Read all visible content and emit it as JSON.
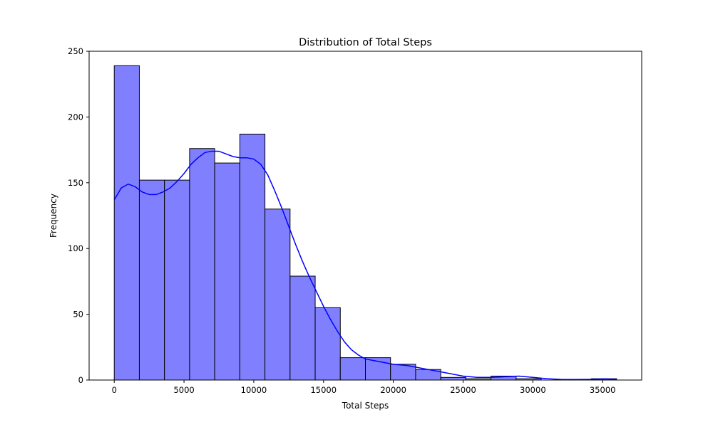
{
  "chart_data": {
    "type": "bar",
    "title": "Distribution of Total Steps",
    "xlabel": "Total Steps",
    "ylabel": "Frequency",
    "xlim": [
      -1800,
      37800
    ],
    "ylim": [
      0,
      250
    ],
    "x_ticks": [
      0,
      5000,
      10000,
      15000,
      20000,
      25000,
      30000,
      35000
    ],
    "x_tick_labels": [
      "0",
      "5000",
      "10000",
      "15000",
      "20000",
      "25000",
      "30000",
      "35000"
    ],
    "y_ticks": [
      0,
      50,
      100,
      150,
      200,
      250
    ],
    "y_tick_labels": [
      "0",
      "50",
      "100",
      "150",
      "200",
      "250"
    ],
    "grid": false,
    "bar_color": "#8080ff",
    "bar_edge_color": "#000000",
    "kde_color": "#0000ff",
    "bins": [
      {
        "x0": 0,
        "x1": 1800,
        "value": 239
      },
      {
        "x0": 1800,
        "x1": 3600,
        "value": 152
      },
      {
        "x0": 3600,
        "x1": 5400,
        "value": 152
      },
      {
        "x0": 5400,
        "x1": 7200,
        "value": 176
      },
      {
        "x0": 7200,
        "x1": 9000,
        "value": 165
      },
      {
        "x0": 9000,
        "x1": 10800,
        "value": 187
      },
      {
        "x0": 10800,
        "x1": 12600,
        "value": 130
      },
      {
        "x0": 12600,
        "x1": 14400,
        "value": 79
      },
      {
        "x0": 14400,
        "x1": 16200,
        "value": 55
      },
      {
        "x0": 16200,
        "x1": 18000,
        "value": 17
      },
      {
        "x0": 18000,
        "x1": 19800,
        "value": 17
      },
      {
        "x0": 19800,
        "x1": 21600,
        "value": 12
      },
      {
        "x0": 21600,
        "x1": 23400,
        "value": 8
      },
      {
        "x0": 23400,
        "x1": 25200,
        "value": 2
      },
      {
        "x0": 25200,
        "x1": 27000,
        "value": 1
      },
      {
        "x0": 27000,
        "x1": 28800,
        "value": 3
      },
      {
        "x0": 28800,
        "x1": 30600,
        "value": 1
      },
      {
        "x0": 30600,
        "x1": 32400,
        "value": 0
      },
      {
        "x0": 32400,
        "x1": 34200,
        "value": 0
      },
      {
        "x0": 34200,
        "x1": 36000,
        "value": 1
      }
    ],
    "kde": {
      "x": [
        0,
        500,
        1000,
        1500,
        2000,
        2500,
        3000,
        3500,
        4000,
        4500,
        5000,
        5500,
        6000,
        6500,
        7000,
        7500,
        8000,
        8500,
        9000,
        9500,
        10000,
        10500,
        11000,
        11500,
        12000,
        12500,
        13000,
        13500,
        14000,
        14500,
        15000,
        15500,
        16000,
        16500,
        17000,
        17500,
        18000,
        19000,
        20000,
        21000,
        22000,
        23000,
        24000,
        25000,
        26000,
        27000,
        28000,
        29000,
        30000,
        31000,
        32000,
        33000,
        34000,
        35000,
        36000
      ],
      "y": [
        137,
        146,
        149,
        147,
        143,
        141,
        141,
        143,
        146,
        151,
        157,
        164,
        169,
        173,
        174,
        174,
        172,
        170,
        169,
        169,
        168,
        164,
        156,
        144,
        131,
        117,
        103,
        90,
        78,
        67,
        56,
        46,
        37,
        29,
        23,
        19,
        16,
        14,
        12,
        11,
        9,
        7,
        5,
        3,
        2,
        2,
        2.5,
        3,
        2,
        1,
        0.5,
        0.4,
        0.5,
        0.8,
        0.6
      ]
    }
  }
}
